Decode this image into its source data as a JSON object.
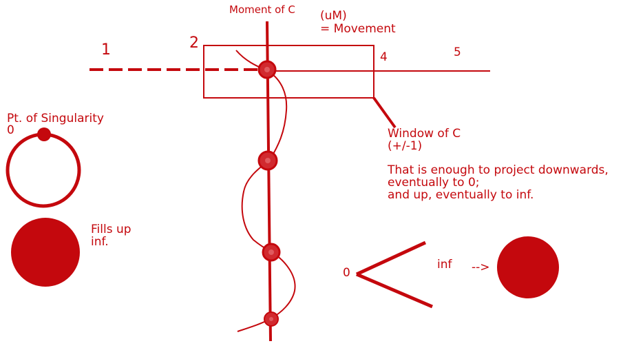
{
  "colors": {
    "ink": "#c4080d",
    "node_fill": "#d12a2f",
    "background": "#ffffff"
  },
  "labels": {
    "moment_of_c": "Moment of C",
    "um_line1": "(uM)",
    "um_line2": "= Movement",
    "num_1": "1",
    "num_2": "2",
    "num_4": "4",
    "num_5": "5",
    "window_line1": "Window of C",
    "window_line2": "(+/-1)",
    "note_line1": "That is enough to project downwards,",
    "note_line2": "eventually to 0;",
    "note_line3": "and up, eventually to inf.",
    "singularity_line1": "Pt. of Singularity",
    "singularity_line2": "0",
    "fills_line1": "Fills up",
    "fills_line2": "inf.",
    "zero": "0",
    "inf": "inf",
    "arrow": "-->"
  }
}
